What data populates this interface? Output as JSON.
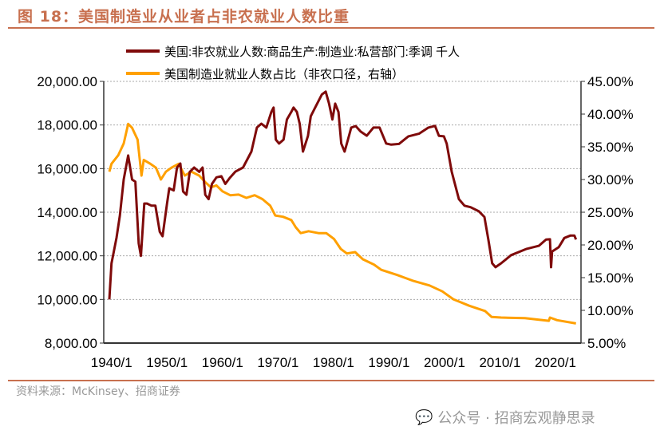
{
  "title": "图 18：美国制造业从业者占非农就业人数比重",
  "source": "资料来源：McKinsey、招商证券",
  "watermark": "公众号 · 招商宏观静思录",
  "chart_data": {
    "type": "line",
    "title": "",
    "legend_position": "top",
    "grid": true,
    "x_range": [
      1938.6,
      2024.6
    ],
    "x_ticks": [
      1940,
      1950,
      1960,
      1970,
      1980,
      1990,
      2000,
      2010,
      2020
    ],
    "x_tick_labels": [
      "1940/1",
      "1950/1",
      "1960/1",
      "1970/1",
      "1980/1",
      "1990/1",
      "2000/1",
      "2010/1",
      "2020/1"
    ],
    "y_left": {
      "range": [
        8000,
        20000
      ],
      "ticks": [
        8000,
        10000,
        12000,
        14000,
        16000,
        18000,
        20000
      ],
      "tick_labels": [
        "8,000.00",
        "10,000.00",
        "12,000.00",
        "14,000.00",
        "16,000.00",
        "18,000.00",
        "20,000.00"
      ]
    },
    "y_right": {
      "range": [
        5,
        45
      ],
      "ticks": [
        5,
        10,
        15,
        20,
        25,
        30,
        35,
        40,
        45
      ],
      "tick_labels": [
        "5.00%",
        "10.00%",
        "15.00%",
        "20.00%",
        "25.00%",
        "30.00%",
        "35.00%",
        "40.00%",
        "45.00%"
      ]
    },
    "series": [
      {
        "name": "美国:非农就业人数:商品生产:制造业:私营部门:季调 千人",
        "axis": "left",
        "color": "#7f0a0a",
        "points": [
          [
            1939.6,
            10000
          ],
          [
            1940,
            11650
          ],
          [
            1940.9,
            12830
          ],
          [
            1941.5,
            13850
          ],
          [
            1942.2,
            15500
          ],
          [
            1943,
            16600
          ],
          [
            1943.7,
            15500
          ],
          [
            1944.3,
            15400
          ],
          [
            1944.9,
            12570
          ],
          [
            1945.3,
            12000
          ],
          [
            1945.9,
            14400
          ],
          [
            1946.4,
            14400
          ],
          [
            1947.2,
            14300
          ],
          [
            1947.9,
            14300
          ],
          [
            1948.7,
            13100
          ],
          [
            1949.2,
            12900
          ],
          [
            1950,
            14400
          ],
          [
            1950.4,
            15100
          ],
          [
            1951.2,
            15000
          ],
          [
            1951.8,
            16050
          ],
          [
            1952.4,
            16230
          ],
          [
            1952.9,
            14950
          ],
          [
            1953.5,
            14800
          ],
          [
            1954.1,
            15850
          ],
          [
            1954.9,
            16050
          ],
          [
            1955.8,
            15850
          ],
          [
            1956.4,
            16050
          ],
          [
            1956.9,
            14800
          ],
          [
            1957.5,
            14600
          ],
          [
            1958.1,
            15300
          ],
          [
            1958.9,
            15600
          ],
          [
            1959.8,
            15650
          ],
          [
            1960.5,
            15300
          ],
          [
            1961.3,
            15570
          ],
          [
            1962.3,
            15860
          ],
          [
            1963.7,
            16050
          ],
          [
            1965.2,
            16780
          ],
          [
            1966.2,
            17880
          ],
          [
            1967,
            18060
          ],
          [
            1967.9,
            17880
          ],
          [
            1968.8,
            18600
          ],
          [
            1969.2,
            18800
          ],
          [
            1969.6,
            17330
          ],
          [
            1970.2,
            17150
          ],
          [
            1971,
            17330
          ],
          [
            1971.6,
            18250
          ],
          [
            1972.4,
            18600
          ],
          [
            1972.8,
            18800
          ],
          [
            1973.4,
            18600
          ],
          [
            1973.9,
            18060
          ],
          [
            1974.5,
            16780
          ],
          [
            1975.4,
            17500
          ],
          [
            1975.9,
            18400
          ],
          [
            1976.9,
            18900
          ],
          [
            1977.9,
            19400
          ],
          [
            1978.6,
            19530
          ],
          [
            1979.2,
            18980
          ],
          [
            1979.8,
            18250
          ],
          [
            1980.3,
            18980
          ],
          [
            1980.9,
            18600
          ],
          [
            1981.4,
            17150
          ],
          [
            1982,
            16780
          ],
          [
            1982.6,
            17330
          ],
          [
            1983.2,
            17880
          ],
          [
            1984,
            17950
          ],
          [
            1984.9,
            17700
          ],
          [
            1986,
            17510
          ],
          [
            1987.2,
            17880
          ],
          [
            1988.3,
            17880
          ],
          [
            1989.5,
            17150
          ],
          [
            1990.4,
            17100
          ],
          [
            1991.8,
            17130
          ],
          [
            1993.5,
            17480
          ],
          [
            1995.4,
            17600
          ],
          [
            1997.1,
            17880
          ],
          [
            1998.3,
            17960
          ],
          [
            1999,
            17500
          ],
          [
            1999.9,
            17480
          ],
          [
            2000.4,
            17150
          ],
          [
            2001.3,
            15860
          ],
          [
            2002.6,
            14600
          ],
          [
            2003.6,
            14300
          ],
          [
            2004.7,
            14230
          ],
          [
            2006.2,
            14040
          ],
          [
            2007.2,
            13780
          ],
          [
            2007.9,
            12750
          ],
          [
            2008.6,
            11660
          ],
          [
            2009.2,
            11480
          ],
          [
            2010.2,
            11660
          ],
          [
            2012,
            12030
          ],
          [
            2014.8,
            12320
          ],
          [
            2017,
            12460
          ],
          [
            2018.3,
            12750
          ],
          [
            2019,
            12760
          ],
          [
            2019.2,
            11480
          ],
          [
            2019.4,
            12200
          ],
          [
            2020.6,
            12400
          ],
          [
            2021.6,
            12820
          ],
          [
            2022.7,
            12930
          ],
          [
            2023.4,
            12930
          ],
          [
            2023.7,
            12750
          ]
        ]
      },
      {
        "name": "美国制造业就业人数占比（非农口径，右轴）",
        "axis": "right",
        "color": "#ffa000",
        "points": [
          [
            1939.6,
            31.2
          ],
          [
            1940,
            32.4
          ],
          [
            1941.2,
            33.7
          ],
          [
            1942.2,
            35.5
          ],
          [
            1943,
            38.5
          ],
          [
            1943.7,
            37.9
          ],
          [
            1944.7,
            36.1
          ],
          [
            1945.4,
            30.6
          ],
          [
            1945.8,
            33.0
          ],
          [
            1947,
            32.4
          ],
          [
            1948,
            31.8
          ],
          [
            1948.9,
            30.0
          ],
          [
            1949.8,
            31.2
          ],
          [
            1950.8,
            31.8
          ],
          [
            1952.1,
            32.4
          ],
          [
            1953.2,
            30.6
          ],
          [
            1954.4,
            31.2
          ],
          [
            1955.8,
            30.6
          ],
          [
            1956.9,
            29.6
          ],
          [
            1957.9,
            28.8
          ],
          [
            1958.9,
            29.1
          ],
          [
            1960,
            28.2
          ],
          [
            1961.4,
            27.6
          ],
          [
            1962.9,
            27.7
          ],
          [
            1964.3,
            27.2
          ],
          [
            1965.8,
            27.6
          ],
          [
            1967.2,
            27.0
          ],
          [
            1968.6,
            26.0
          ],
          [
            1969.5,
            24.5
          ],
          [
            1970.9,
            24.3
          ],
          [
            1972.4,
            23.8
          ],
          [
            1973.2,
            22.7
          ],
          [
            1974.1,
            21.8
          ],
          [
            1975.5,
            22.1
          ],
          [
            1977.3,
            21.8
          ],
          [
            1978.7,
            21.8
          ],
          [
            1980.1,
            20.9
          ],
          [
            1981.3,
            19.4
          ],
          [
            1982.4,
            18.7
          ],
          [
            1983.9,
            18.9
          ],
          [
            1985.3,
            17.8
          ],
          [
            1987.3,
            17.0
          ],
          [
            1988.6,
            16.2
          ],
          [
            1991.5,
            15.4
          ],
          [
            1994.4,
            14.5
          ],
          [
            1997.3,
            13.8
          ],
          [
            1999.6,
            12.9
          ],
          [
            2001.6,
            11.7
          ],
          [
            2004.5,
            10.7
          ],
          [
            2007.3,
            9.9
          ],
          [
            2008.5,
            9.0
          ],
          [
            2010.2,
            8.9
          ],
          [
            2014.5,
            8.8
          ],
          [
            2018.8,
            8.4
          ],
          [
            2019,
            8.9
          ],
          [
            2020.3,
            8.5
          ],
          [
            2023.7,
            8.0
          ]
        ]
      }
    ]
  }
}
